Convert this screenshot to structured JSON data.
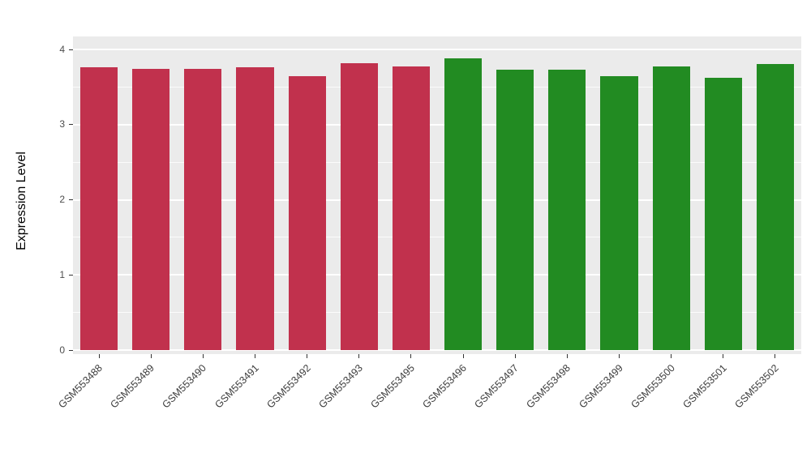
{
  "chart_data": {
    "type": "bar",
    "title": "",
    "xlabel": "",
    "ylabel": "Expression Level",
    "ylim": [
      0,
      4
    ],
    "yticks": [
      0,
      1,
      2,
      3,
      4
    ],
    "ytick_labels": [
      "0",
      "1",
      "2",
      "3",
      "4"
    ],
    "grid": true,
    "legend_position": "none",
    "categories": [
      "GSM553488",
      "GSM553489",
      "GSM553490",
      "GSM553491",
      "GSM553492",
      "GSM553493",
      "GSM553495",
      "GSM553496",
      "GSM553497",
      "GSM553498",
      "GSM553499",
      "GSM553500",
      "GSM553501",
      "GSM553502"
    ],
    "values": [
      3.76,
      3.74,
      3.74,
      3.76,
      3.64,
      3.82,
      3.77,
      3.88,
      3.73,
      3.73,
      3.64,
      3.77,
      3.62,
      3.81
    ],
    "bar_colors": [
      "#C1314D",
      "#C1314D",
      "#C1314D",
      "#C1314D",
      "#C1314D",
      "#C1314D",
      "#C1314D",
      "#228B22",
      "#228B22",
      "#228B22",
      "#228B22",
      "#228B22",
      "#228B22",
      "#228B22"
    ],
    "group_colors": {
      "red_group": "#C1314D",
      "green_group": "#228B22"
    },
    "plot_background": "#EBEBEB",
    "gridline_color": "#FFFFFF",
    "figure_background": "#FFFFFF"
  }
}
